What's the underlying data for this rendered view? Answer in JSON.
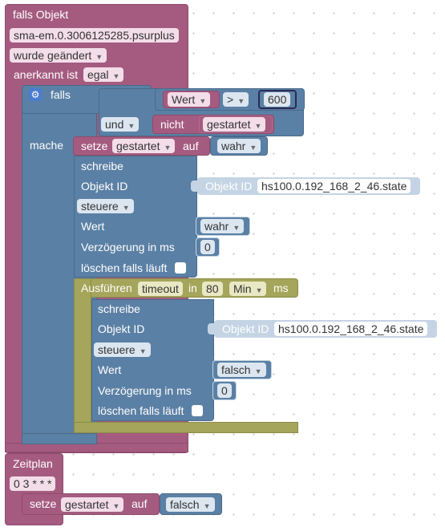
{
  "trigger": {
    "label": "falls Objekt",
    "object_id": "sma-em.0.3006125285.psurplus",
    "condition": "wurde geändert",
    "ack_label": "anerkannt ist",
    "ack_value": "egal"
  },
  "if_block": {
    "label": "falls",
    "var_name": "Wert",
    "operator": ">",
    "compare_value": "600",
    "and_op": "und",
    "not_label": "nicht",
    "not_var": "gestartet",
    "do_label": "mache"
  },
  "set1": {
    "label": "setze",
    "var": "gestartet",
    "to_label": "auf",
    "value": "wahr"
  },
  "write1": {
    "title": "schreibe",
    "oid_label": "Objekt ID",
    "oid_head": "Objekt ID",
    "oid_value": "hs100.0.192_168_2_46.state",
    "mode": "steuere",
    "value_label": "Wert",
    "value": "wahr",
    "delay_label": "Verzögerung in ms",
    "delay_value": "0",
    "clear_label": "löschen falls läuft"
  },
  "timeout": {
    "label": "Ausführen",
    "var": "timeout",
    "in_label": "in",
    "amount": "80",
    "unit": "Min",
    "ms_label": "ms"
  },
  "write2": {
    "title": "schreibe",
    "oid_label": "Objekt ID",
    "oid_head": "Objekt ID",
    "oid_value": "hs100.0.192_168_2_46.state",
    "mode": "steuere",
    "value_label": "Wert",
    "value": "falsch",
    "delay_label": "Verzögerung in ms",
    "delay_value": "0",
    "clear_label": "löschen falls läuft"
  },
  "schedule": {
    "label": "Zeitplan",
    "cron": "0 3 * * *"
  },
  "set2": {
    "label": "setze",
    "var": "gestartet",
    "to_label": "auf",
    "value": "falsch"
  },
  "icons": [
    "gear-icon",
    "dropdown-arrow-icon"
  ]
}
